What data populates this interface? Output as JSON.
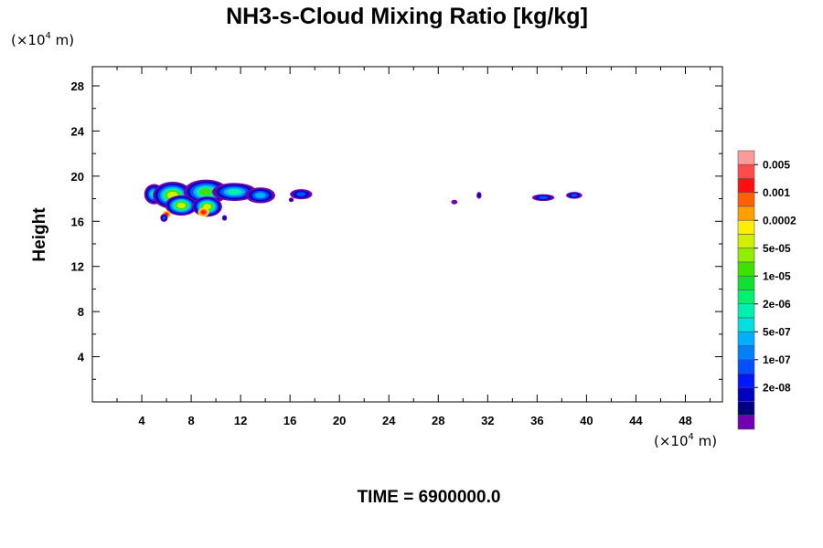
{
  "chart_data": {
    "type": "contour",
    "title": "NH3-s-Cloud Mixing Ratio [kg/kg]",
    "ylabel": "Height",
    "xlabel": "",
    "x_unit_prefix": "(×10",
    "x_unit_exp": "4",
    "x_unit_suffix": " m)",
    "y_unit_prefix": "(×10",
    "y_unit_exp": "4",
    "y_unit_suffix": " m)",
    "footer": "TIME = 6900000.0",
    "xlim": [
      0,
      51
    ],
    "ylim": [
      0,
      29.7
    ],
    "x_ticks": [
      4,
      8,
      12,
      16,
      20,
      24,
      28,
      32,
      36,
      40,
      44,
      48
    ],
    "y_ticks": [
      4,
      8,
      12,
      16,
      20,
      24,
      28
    ],
    "colorbar": {
      "labels": [
        "0.005",
        "0.001",
        "0.0002",
        "5e-05",
        "1e-05",
        "2e-06",
        "5e-07",
        "1e-07",
        "2e-08"
      ],
      "colors": [
        "#ff9a9a",
        "#ff4b4b",
        "#ff1010",
        "#ff6000",
        "#ffa000",
        "#ffee00",
        "#d0f000",
        "#90ee00",
        "#40e000",
        "#10e030",
        "#00f070",
        "#00f0b0",
        "#00e0e0",
        "#00b0ff",
        "#0080ff",
        "#0050ff",
        "#0018ff",
        "#0000c0",
        "#000080",
        "#7000b0"
      ]
    },
    "cloud_regions": [
      {
        "x": [
          4.5,
          8.0
        ],
        "y": [
          16.5,
          19.0
        ],
        "level": "5e-05 to 0.001"
      },
      {
        "x": [
          8.0,
          15.0
        ],
        "y": [
          16.3,
          19.5
        ],
        "level": "2e-08 to 0.001"
      },
      {
        "x": [
          16.0,
          17.8
        ],
        "y": [
          17.8,
          19.0
        ],
        "level": "2e-08 to 1e-07"
      },
      {
        "x": [
          29.0,
          29.6
        ],
        "y": [
          17.5,
          18.0
        ],
        "level": "5e-07"
      },
      {
        "x": [
          31.0,
          31.5
        ],
        "y": [
          18.0,
          18.5
        ],
        "level": "1e-07"
      },
      {
        "x": [
          35.5,
          37.5
        ],
        "y": [
          17.8,
          18.5
        ],
        "level": "2e-08 to 5e-07"
      },
      {
        "x": [
          38.3,
          39.8
        ],
        "y": [
          18.0,
          18.7
        ],
        "level": "2e-08 to 5e-07"
      }
    ]
  }
}
